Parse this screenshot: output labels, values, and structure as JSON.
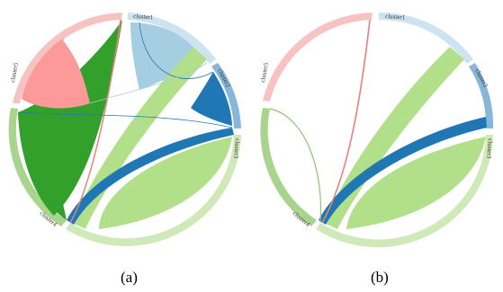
{
  "panels": [
    {
      "caption": "(a)",
      "groups": [
        {
          "name": "cluster1",
          "color": "#cde3f0",
          "label": "cluster1"
        },
        {
          "name": "cluster2",
          "color": "#86b7d9",
          "label": "cluster2"
        },
        {
          "name": "cluster3",
          "color": "#cfe9b8",
          "label": "cluster3"
        },
        {
          "name": "cluster4",
          "color": "#a9d48e",
          "label": "cluster4"
        },
        {
          "name": "cluster5",
          "color": "#f7c2c2",
          "label": "cluster5"
        }
      ],
      "ribbons": [
        {
          "from": "cluster5",
          "to": "cluster5",
          "color": "#fb9a99"
        },
        {
          "from": "cluster4",
          "to": "cluster4",
          "color": "#33a02c"
        },
        {
          "from": "cluster1",
          "to": "cluster1",
          "color": "#a6cee3"
        },
        {
          "from": "cluster2",
          "to": "cluster2",
          "color": "#1f78b4"
        },
        {
          "from": "cluster3",
          "to": "cluster3",
          "color": "#b2df8a"
        },
        {
          "from": "cluster1",
          "to": "cluster3",
          "color": "#b2df8a"
        },
        {
          "from": "cluster2",
          "to": "cluster4",
          "color": "#1f78b4"
        },
        {
          "from": "cluster5",
          "to": "cluster3",
          "color": "#fb9a99"
        }
      ]
    },
    {
      "caption": "(b)",
      "groups": [
        {
          "name": "cluster1",
          "color": "#cde3f0",
          "label": "cluster1"
        },
        {
          "name": "cluster2",
          "color": "#86b7d9",
          "label": "cluster2"
        },
        {
          "name": "cluster3",
          "color": "#cfe9b8",
          "label": "cluster3"
        },
        {
          "name": "cluster4",
          "color": "#a9d48e",
          "label": "cluster4"
        },
        {
          "name": "cluster5",
          "color": "#f7c2c2",
          "label": "cluster5"
        }
      ],
      "ribbons": [
        {
          "from": "cluster3",
          "to": "cluster3",
          "color": "#b2df8a"
        },
        {
          "from": "cluster1",
          "to": "cluster3",
          "color": "#b2df8a"
        },
        {
          "from": "cluster2",
          "to": "cluster4",
          "color": "#1f78b4"
        },
        {
          "from": "cluster5",
          "to": "cluster3",
          "color": "#e8807f"
        },
        {
          "from": "cluster4",
          "to": "cluster3",
          "color": "#a9d48e"
        }
      ]
    }
  ]
}
